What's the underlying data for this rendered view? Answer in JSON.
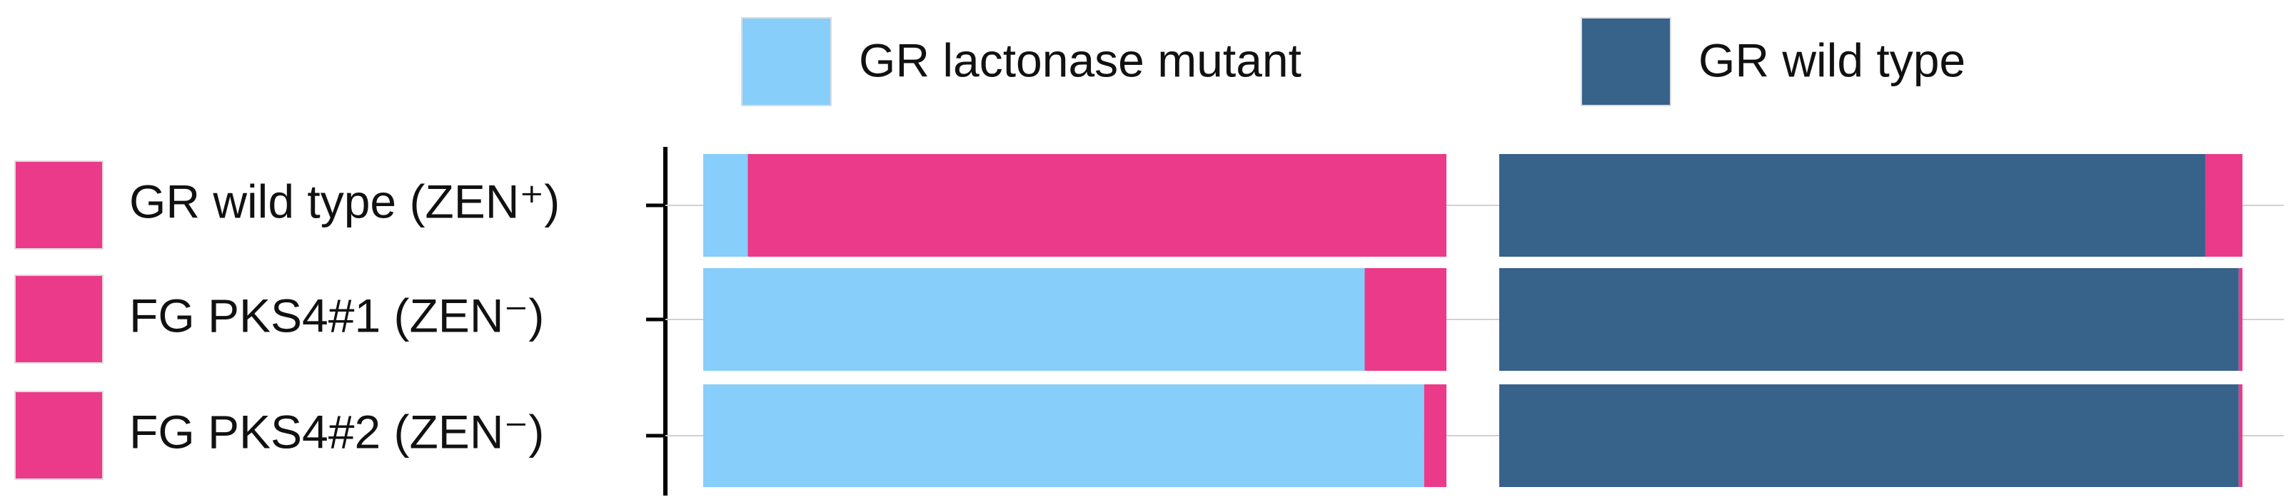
{
  "chart_data": {
    "type": "stacked-barh",
    "categories": [
      "GR wild type (ZEN⁺)",
      "FG PKS4#1 (ZEN⁻)",
      "FG PKS4#2 (ZEN⁻)"
    ],
    "xlim": [
      0,
      100
    ],
    "grid": true,
    "panels": [
      {
        "series": [
          {
            "name": "GR lactonase mutant",
            "color": "#87cefa",
            "values": [
              6,
              89,
              97
            ]
          },
          {
            "color": "#ec3a8a",
            "values": [
              94,
              11,
              3
            ]
          }
        ]
      },
      {
        "series": [
          {
            "name": "GR wild type",
            "color": "#376289",
            "values": [
              95,
              99.5,
              99.5
            ]
          },
          {
            "color": "#ec3a8a",
            "values": [
              5,
              0.5,
              0.5
            ]
          }
        ]
      }
    ]
  }
}
